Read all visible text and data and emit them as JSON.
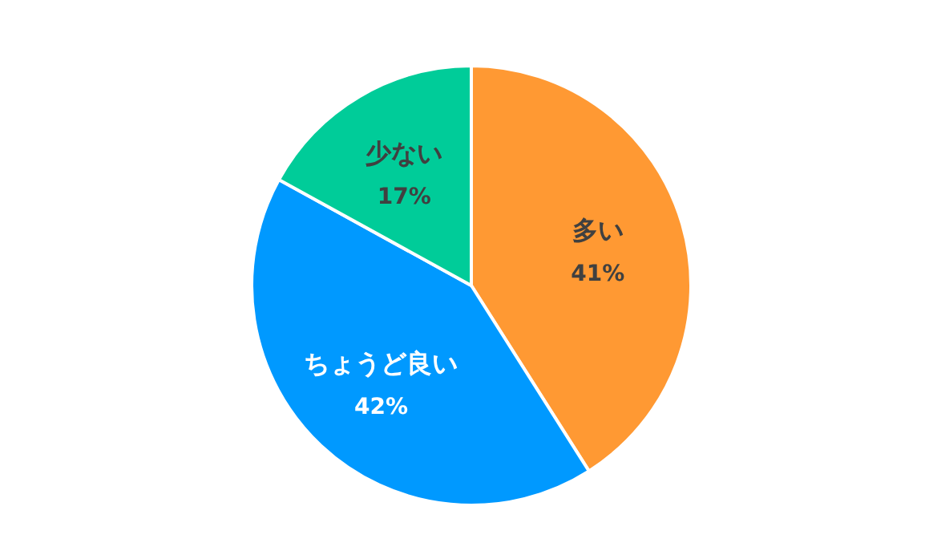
{
  "chart_data": {
    "type": "pie",
    "categories": [
      "多い",
      "ちょうど良い",
      "少ない"
    ],
    "values": [
      41,
      42,
      17
    ],
    "value_labels": [
      "41%",
      "42%",
      "17%"
    ],
    "colors": [
      "#ff9933",
      "#0099ff",
      "#00cc99"
    ]
  }
}
